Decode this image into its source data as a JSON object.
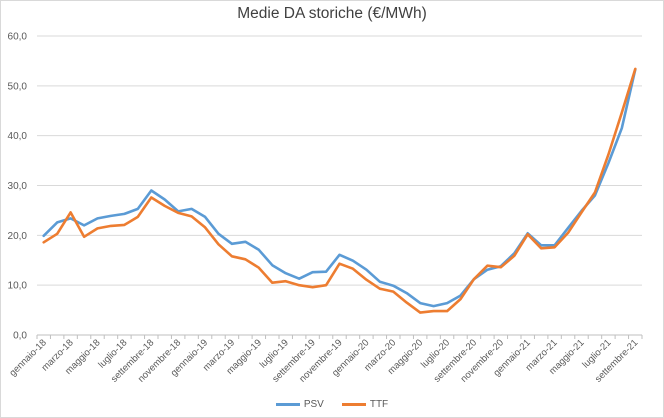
{
  "chart_data": {
    "type": "line",
    "title": "Medie DA storiche (€/MWh)",
    "xlabel": "",
    "ylabel": "",
    "ylim": [
      0,
      60
    ],
    "yticks": [
      "0,0",
      "10,0",
      "20,0",
      "30,0",
      "40,0",
      "50,0",
      "60,0"
    ],
    "grid": true,
    "legend": "bottom",
    "categories": [
      "gennaio-18",
      "febbraio-18",
      "marzo-18",
      "aprile-18",
      "maggio-18",
      "giugno-18",
      "luglio-18",
      "agosto-18",
      "settembre-18",
      "ottobre-18",
      "novembre-18",
      "dicembre-18",
      "gennaio-19",
      "febbraio-19",
      "marzo-19",
      "aprile-19",
      "maggio-19",
      "giugno-19",
      "luglio-19",
      "agosto-19",
      "settembre-19",
      "ottobre-19",
      "novembre-19",
      "dicembre-19",
      "gennaio-20",
      "febbraio-20",
      "marzo-20",
      "aprile-20",
      "maggio-20",
      "giugno-20",
      "luglio-20",
      "agosto-20",
      "settembre-20",
      "ottobre-20",
      "novembre-20",
      "dicembre-20",
      "gennaio-21",
      "febbraio-21",
      "marzo-21",
      "aprile-21",
      "maggio-21",
      "giugno-21",
      "luglio-21",
      "agosto-21",
      "settembre-21"
    ],
    "tick_labels": [
      "gennaio-18",
      "marzo-18",
      "maggio-18",
      "luglio-18",
      "settembre-18",
      "novembre-18",
      "gennaio-19",
      "marzo-19",
      "maggio-19",
      "luglio-19",
      "settembre-19",
      "novembre-19",
      "gennaio-20",
      "marzo-20",
      "maggio-20",
      "luglio-20",
      "settembre-20",
      "novembre-20",
      "gennaio-21",
      "marzo-21",
      "maggio-21",
      "luglio-21",
      "settembre-21"
    ],
    "series": [
      {
        "name": "PSV",
        "color": "#5b9bd5",
        "values": [
          19.9,
          22.6,
          23.4,
          22.0,
          23.4,
          23.9,
          24.3,
          25.3,
          29.0,
          27.2,
          24.8,
          25.3,
          23.7,
          20.3,
          18.3,
          18.7,
          17.1,
          14.0,
          12.4,
          11.3,
          12.6,
          12.7,
          16.1,
          14.9,
          13.1,
          10.7,
          9.9,
          8.4,
          6.4,
          5.8,
          6.4,
          7.9,
          11.2,
          13.1,
          13.8,
          16.4,
          20.4,
          18.0,
          18.0,
          21.5,
          24.9,
          28.0,
          34.5,
          41.5,
          53.3
        ]
      },
      {
        "name": "TTF",
        "color": "#ed7d31",
        "values": [
          18.6,
          20.3,
          24.6,
          19.7,
          21.4,
          21.9,
          22.1,
          23.7,
          27.6,
          25.9,
          24.5,
          23.8,
          21.6,
          18.2,
          15.8,
          15.2,
          13.5,
          10.5,
          10.8,
          10.0,
          9.6,
          10.0,
          14.3,
          13.3,
          11.1,
          9.3,
          8.7,
          6.5,
          4.5,
          4.8,
          4.8,
          7.2,
          11.2,
          13.9,
          13.6,
          15.9,
          20.2,
          17.4,
          17.6,
          20.5,
          24.6,
          28.6,
          36.2,
          44.6,
          53.4
        ]
      }
    ]
  }
}
